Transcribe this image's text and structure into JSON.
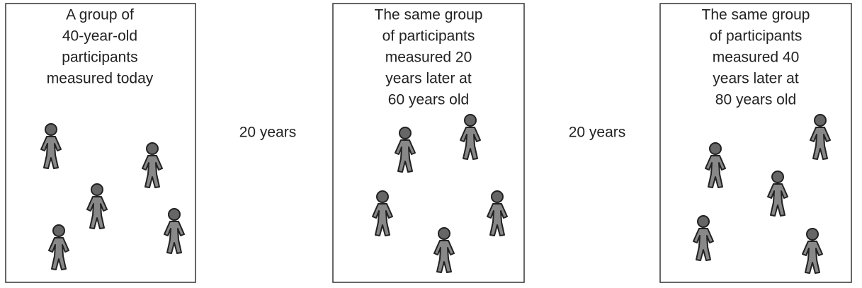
{
  "panels": [
    {
      "lines": [
        "A group of",
        "40-year-old",
        "participants",
        "measured today"
      ]
    },
    {
      "lines": [
        "The same group",
        "of participants",
        "measured 20",
        "years later at",
        "60 years old"
      ]
    },
    {
      "lines": [
        "The same group",
        "of participants",
        "measured 40",
        "years later at",
        "80 years old"
      ]
    }
  ],
  "transitions": [
    {
      "label": "20 years"
    },
    {
      "label": "20 years"
    }
  ]
}
